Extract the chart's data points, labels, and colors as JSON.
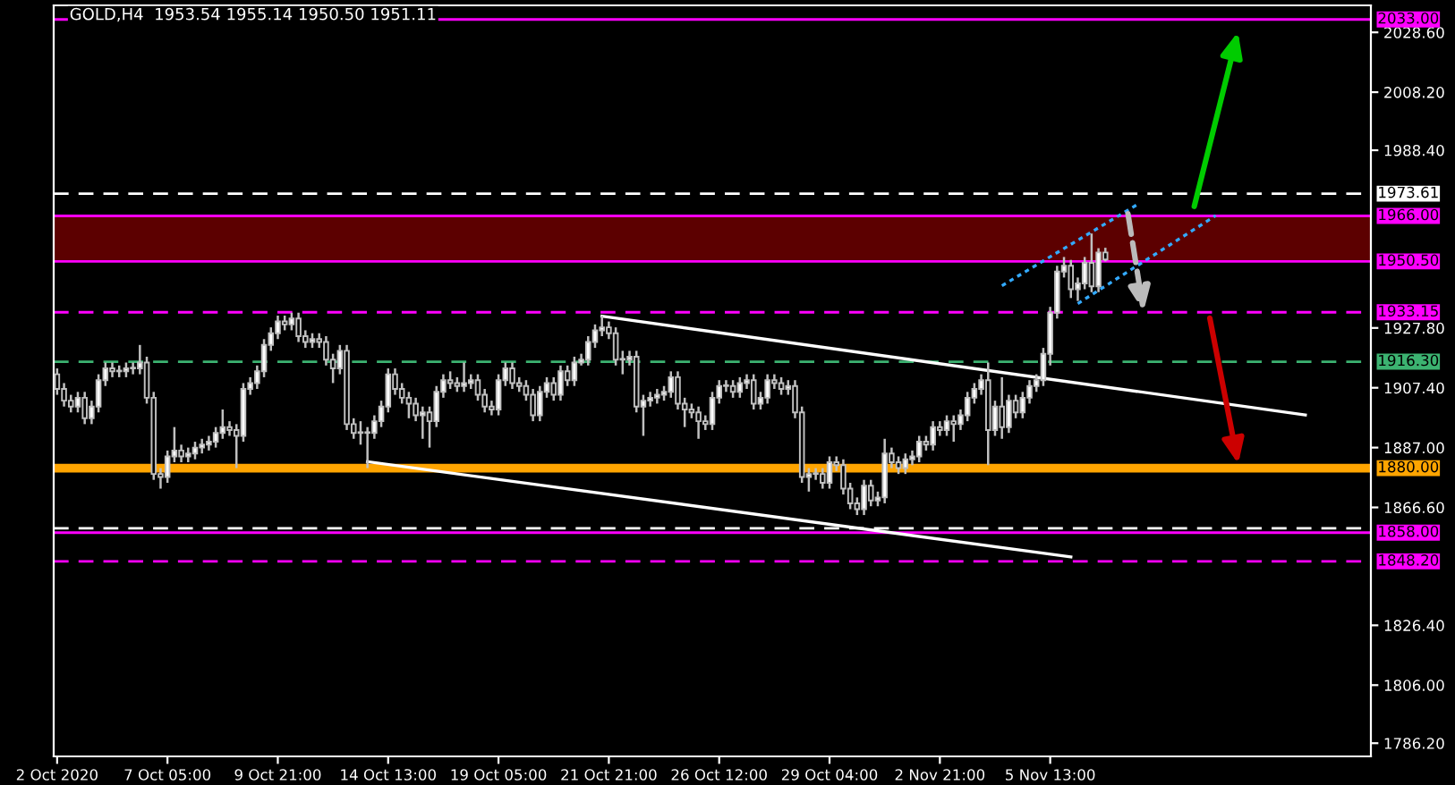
{
  "chart_data": {
    "type": "candlestick",
    "title": "GOLD,H4  1953.54 1955.14 1950.50 1951.11",
    "categories": [
      "2 Oct 2020",
      null,
      null,
      null,
      null,
      null,
      null,
      null,
      null,
      null,
      null,
      null,
      null,
      null,
      null,
      null,
      "7 Oct 05:00",
      null,
      null,
      null,
      null,
      null,
      null,
      null,
      null,
      null,
      null,
      null,
      null,
      null,
      null,
      null,
      "9 Oct 21:00",
      null,
      null,
      null,
      null,
      null,
      null,
      null,
      null,
      null,
      null,
      null,
      null,
      null,
      null,
      null,
      "14 Oct 13:00",
      null,
      null,
      null,
      null,
      null,
      null,
      null,
      null,
      null,
      null,
      null,
      null,
      null,
      null,
      null,
      "19 Oct 05:00",
      null,
      null,
      null,
      null,
      null,
      null,
      null,
      null,
      null,
      null,
      null,
      null,
      null,
      null,
      null,
      "21 Oct 21:00",
      null,
      null,
      null,
      null,
      null,
      null,
      null,
      null,
      null,
      null,
      null,
      null,
      null,
      null,
      null,
      "26 Oct 12:00",
      null,
      null,
      null,
      null,
      null,
      null,
      null,
      null,
      null,
      null,
      null,
      null,
      null,
      null,
      null,
      "29 Oct 04:00",
      null,
      null,
      null,
      null,
      null,
      null,
      null,
      null,
      null,
      null,
      null,
      null,
      null,
      null,
      null,
      "2 Nov 21:00",
      null,
      null,
      null,
      null,
      null,
      null,
      null,
      null,
      null,
      null,
      null,
      null,
      null,
      null,
      null,
      "5 Nov 13:00",
      null,
      null,
      null,
      null,
      null,
      null,
      null,
      null,
      null,
      null,
      null,
      null,
      null,
      null,
      null,
      null,
      null,
      null,
      null,
      null,
      null,
      null,
      null,
      null,
      null,
      null,
      null,
      null,
      null,
      null,
      null,
      null,
      null,
      null,
      null,
      null,
      null,
      null,
      null,
      null,
      null,
      null,
      null,
      null,
      null,
      null
    ],
    "ohlc": [
      [
        1912,
        1914,
        1905,
        1907
      ],
      [
        1907,
        1909,
        1901,
        1903
      ],
      [
        1903,
        1905,
        1899,
        1901
      ],
      [
        1901,
        1906,
        1899,
        1904
      ],
      [
        1904,
        1906,
        1895,
        1897
      ],
      [
        1897,
        1903,
        1895,
        1901
      ],
      [
        1901,
        1912,
        1899,
        1910
      ],
      [
        1910,
        1916,
        1908,
        1914
      ],
      [
        1914,
        1916,
        1911,
        1913
      ],
      [
        1913,
        1915,
        1911,
        1913
      ],
      [
        1913,
        1916,
        1911,
        1914
      ],
      [
        1914,
        1916,
        1912,
        1914
      ],
      [
        1914,
        1922,
        1912,
        1916
      ],
      [
        1916,
        1918,
        1902,
        1904
      ],
      [
        1904,
        1906,
        1876,
        1878
      ],
      [
        1878,
        1880,
        1873,
        1877
      ],
      [
        1877,
        1886,
        1875,
        1884
      ],
      [
        1884,
        1894,
        1882,
        1886
      ],
      [
        1886,
        1888,
        1882,
        1884
      ],
      [
        1884,
        1887,
        1882,
        1885
      ],
      [
        1885,
        1889,
        1883,
        1887
      ],
      [
        1887,
        1890,
        1885,
        1888
      ],
      [
        1888,
        1891,
        1886,
        1889
      ],
      [
        1889,
        1894,
        1887,
        1892
      ],
      [
        1892,
        1900,
        1890,
        1894
      ],
      [
        1894,
        1896,
        1891,
        1893
      ],
      [
        1893,
        1895,
        1880,
        1891
      ],
      [
        1891,
        1909,
        1889,
        1907
      ],
      [
        1907,
        1911,
        1905,
        1909
      ],
      [
        1909,
        1915,
        1907,
        1913
      ],
      [
        1913,
        1924,
        1911,
        1922
      ],
      [
        1922,
        1928,
        1920,
        1926
      ],
      [
        1926,
        1932,
        1924,
        1930
      ],
      [
        1930,
        1932,
        1927,
        1929
      ],
      [
        1929,
        1933,
        1927,
        1931
      ],
      [
        1931,
        1933,
        1923,
        1925
      ],
      [
        1925,
        1927,
        1921,
        1923
      ],
      [
        1923,
        1926,
        1921,
        1924
      ],
      [
        1924,
        1926,
        1921,
        1923
      ],
      [
        1923,
        1925,
        1915,
        1917
      ],
      [
        1917,
        1919,
        1909,
        1914
      ],
      [
        1914,
        1922,
        1912,
        1920
      ],
      [
        1920,
        1922,
        1893,
        1895
      ],
      [
        1895,
        1897,
        1890,
        1892
      ],
      [
        1892,
        1896,
        1888,
        1892
      ],
      [
        1892,
        1894,
        1880,
        1892
      ],
      [
        1892,
        1898,
        1890,
        1896
      ],
      [
        1896,
        1903,
        1894,
        1901
      ],
      [
        1901,
        1914,
        1899,
        1912
      ],
      [
        1912,
        1914,
        1905,
        1907
      ],
      [
        1907,
        1909,
        1902,
        1904
      ],
      [
        1904,
        1906,
        1897,
        1902
      ],
      [
        1902,
        1904,
        1896,
        1898
      ],
      [
        1898,
        1901,
        1890,
        1899
      ],
      [
        1899,
        1901,
        1887,
        1896
      ],
      [
        1896,
        1908,
        1894,
        1906
      ],
      [
        1906,
        1912,
        1904,
        1910
      ],
      [
        1910,
        1913,
        1907,
        1909
      ],
      [
        1909,
        1911,
        1906,
        1908
      ],
      [
        1908,
        1916,
        1906,
        1909
      ],
      [
        1909,
        1912,
        1907,
        1910
      ],
      [
        1910,
        1912,
        1903,
        1905
      ],
      [
        1905,
        1907,
        1899,
        1901
      ],
      [
        1901,
        1903,
        1898,
        1900
      ],
      [
        1900,
        1912,
        1898,
        1910
      ],
      [
        1910,
        1916,
        1908,
        1914
      ],
      [
        1914,
        1916,
        1907,
        1909
      ],
      [
        1909,
        1911,
        1906,
        1908
      ],
      [
        1908,
        1910,
        1903,
        1905
      ],
      [
        1905,
        1907,
        1896,
        1898
      ],
      [
        1898,
        1908,
        1896,
        1906
      ],
      [
        1906,
        1911,
        1904,
        1909
      ],
      [
        1909,
        1911,
        1903,
        1905
      ],
      [
        1905,
        1915,
        1903,
        1913
      ],
      [
        1913,
        1915,
        1908,
        1910
      ],
      [
        1910,
        1918,
        1908,
        1916
      ],
      [
        1916,
        1919,
        1915,
        1917
      ],
      [
        1917,
        1925,
        1915,
        1923
      ],
      [
        1923,
        1929,
        1921,
        1927
      ],
      [
        1927,
        1932,
        1925,
        1928
      ],
      [
        1928,
        1930,
        1924,
        1926
      ],
      [
        1926,
        1928,
        1915,
        1917
      ],
      [
        1917,
        1920,
        1912,
        1917
      ],
      [
        1917,
        1920,
        1915,
        1918
      ],
      [
        1918,
        1920,
        1899,
        1901
      ],
      [
        1901,
        1905,
        1891,
        1903
      ],
      [
        1903,
        1906,
        1901,
        1904
      ],
      [
        1904,
        1907,
        1902,
        1905
      ],
      [
        1905,
        1908,
        1903,
        1906
      ],
      [
        1906,
        1913,
        1904,
        1911
      ],
      [
        1911,
        1913,
        1900,
        1902
      ],
      [
        1902,
        1904,
        1894,
        1900
      ],
      [
        1900,
        1902,
        1897,
        1899
      ],
      [
        1899,
        1901,
        1890,
        1896
      ],
      [
        1896,
        1898,
        1893,
        1895
      ],
      [
        1895,
        1906,
        1893,
        1904
      ],
      [
        1904,
        1910,
        1902,
        1908
      ],
      [
        1908,
        1910,
        1906,
        1908
      ],
      [
        1908,
        1910,
        1904,
        1906
      ],
      [
        1906,
        1911,
        1904,
        1909
      ],
      [
        1909,
        1912,
        1907,
        1910
      ],
      [
        1910,
        1912,
        1900,
        1902
      ],
      [
        1902,
        1906,
        1900,
        1904
      ],
      [
        1904,
        1912,
        1902,
        1910
      ],
      [
        1910,
        1912,
        1907,
        1909
      ],
      [
        1909,
        1911,
        1905,
        1907
      ],
      [
        1907,
        1910,
        1905,
        1908
      ],
      [
        1908,
        1910,
        1897,
        1899
      ],
      [
        1899,
        1901,
        1875,
        1877
      ],
      [
        1877,
        1880,
        1872,
        1878
      ],
      [
        1878,
        1880,
        1876,
        1878
      ],
      [
        1878,
        1880,
        1873,
        1875
      ],
      [
        1875,
        1884,
        1873,
        1882
      ],
      [
        1882,
        1884,
        1879,
        1881
      ],
      [
        1881,
        1883,
        1871,
        1873
      ],
      [
        1873,
        1875,
        1866,
        1868
      ],
      [
        1868,
        1870,
        1864,
        1866
      ],
      [
        1866,
        1876,
        1864,
        1874
      ],
      [
        1874,
        1876,
        1867,
        1869
      ],
      [
        1869,
        1872,
        1867,
        1870
      ],
      [
        1870,
        1890,
        1868,
        1885
      ],
      [
        1885,
        1887,
        1880,
        1882
      ],
      [
        1882,
        1884,
        1878,
        1880
      ],
      [
        1880,
        1885,
        1878,
        1883
      ],
      [
        1883,
        1886,
        1881,
        1884
      ],
      [
        1884,
        1891,
        1882,
        1889
      ],
      [
        1889,
        1891,
        1886,
        1888
      ],
      [
        1888,
        1896,
        1886,
        1894
      ],
      [
        1894,
        1896,
        1891,
        1893
      ],
      [
        1893,
        1898,
        1891,
        1896
      ],
      [
        1896,
        1898,
        1889,
        1895
      ],
      [
        1895,
        1900,
        1893,
        1898
      ],
      [
        1898,
        1906,
        1896,
        1904
      ],
      [
        1904,
        1909,
        1902,
        1907
      ],
      [
        1907,
        1912,
        1905,
        1910
      ],
      [
        1910,
        1916,
        1881,
        1893
      ],
      [
        1893,
        1903,
        1891,
        1901
      ],
      [
        1901,
        1911,
        1890,
        1894
      ],
      [
        1894,
        1905,
        1892,
        1903
      ],
      [
        1903,
        1905,
        1897,
        1899
      ],
      [
        1899,
        1906,
        1897,
        1904
      ],
      [
        1904,
        1910,
        1902,
        1908
      ],
      [
        1908,
        1912,
        1906,
        1910
      ],
      [
        1910,
        1921,
        1908,
        1919
      ],
      [
        1919,
        1935,
        1915,
        1933
      ],
      [
        1933,
        1949,
        1931,
        1947
      ],
      [
        1947,
        1952,
        1945,
        1949
      ],
      [
        1949,
        1951,
        1938,
        1941
      ],
      [
        1941,
        1945,
        1937,
        1943
      ],
      [
        1943,
        1952,
        1941,
        1950
      ],
      [
        1950,
        1960,
        1940,
        1942
      ],
      [
        1942,
        1955,
        1940,
        1953.54
      ],
      [
        1953.54,
        1955.14,
        1950.5,
        1951.11
      ],
      null,
      null,
      null,
      null,
      null,
      null,
      null,
      null,
      null,
      null,
      null,
      null,
      null,
      null,
      null,
      null,
      null,
      null,
      null,
      null,
      null,
      null,
      null,
      null,
      null,
      null,
      null,
      null,
      null,
      null,
      null,
      null,
      null,
      null,
      null,
      null,
      null,
      null
    ],
    "series": [
      {
        "type": "line",
        "color": "#ffffff",
        "line_style": "solid",
        "values": [
          null,
          null,
          null,
          null,
          null,
          null,
          null,
          null,
          null,
          null,
          null,
          null,
          null,
          null,
          null,
          null,
          null,
          null,
          null,
          null,
          null,
          null,
          null,
          null,
          null,
          null,
          null,
          null,
          null,
          null,
          null,
          null,
          null,
          null,
          null,
          null,
          null,
          null,
          null,
          null,
          null,
          null,
          null,
          null,
          null,
          null,
          null,
          null,
          null,
          null,
          null,
          null,
          null,
          null,
          null,
          null,
          null,
          null,
          null,
          null,
          null,
          null,
          null,
          null,
          null,
          null,
          null,
          null,
          null,
          null,
          null,
          null,
          null,
          null,
          null,
          null,
          null,
          null,
          null,
          1931.8,
          null,
          null,
          null,
          null,
          null,
          null,
          null,
          null,
          null,
          null,
          null,
          null,
          null,
          null,
          null,
          null,
          null,
          null,
          null,
          null,
          null,
          null,
          null,
          null,
          null,
          null,
          null,
          null,
          null,
          null,
          null,
          null,
          null,
          null,
          null,
          null,
          null,
          null,
          null,
          null,
          null,
          null,
          null,
          null,
          null,
          null,
          null,
          null,
          null,
          null,
          null,
          null,
          null,
          null,
          null,
          null,
          null,
          null,
          null,
          null,
          null,
          null,
          null,
          null,
          null,
          null,
          null,
          null,
          null,
          null,
          null,
          null,
          null,
          null,
          null,
          null,
          null,
          null,
          null,
          null,
          null,
          null,
          null,
          null,
          null,
          null,
          null,
          null,
          null,
          null,
          null,
          null,
          null,
          null,
          null,
          null,
          null,
          null,
          null,
          null,
          null,
          1898.1,
          null,
          null,
          null,
          null,
          null,
          null,
          null,
          null,
          null
        ]
      },
      {
        "type": "line",
        "color": "#ffffff",
        "line_style": "solid",
        "values": [
          null,
          null,
          null,
          null,
          null,
          null,
          null,
          null,
          null,
          null,
          null,
          null,
          null,
          null,
          null,
          null,
          null,
          null,
          null,
          null,
          null,
          null,
          null,
          null,
          null,
          null,
          null,
          null,
          null,
          null,
          null,
          null,
          null,
          null,
          null,
          null,
          null,
          null,
          null,
          null,
          null,
          null,
          null,
          null,
          null,
          1882.2,
          null,
          null,
          null,
          null,
          null,
          null,
          null,
          null,
          null,
          null,
          null,
          null,
          null,
          null,
          null,
          null,
          null,
          null,
          null,
          null,
          null,
          null,
          null,
          null,
          null,
          null,
          null,
          null,
          null,
          null,
          null,
          null,
          null,
          null,
          null,
          null,
          null,
          null,
          null,
          null,
          null,
          null,
          null,
          null,
          null,
          null,
          null,
          null,
          null,
          null,
          null,
          null,
          null,
          null,
          null,
          null,
          null,
          null,
          null,
          null,
          null,
          null,
          null,
          null,
          null,
          null,
          null,
          null,
          null,
          null,
          null,
          null,
          null,
          null,
          null,
          null,
          null,
          null,
          null,
          null,
          null,
          null,
          null,
          null,
          null,
          null,
          null,
          null,
          null,
          null,
          null,
          null,
          null,
          null,
          null,
          null,
          null,
          null,
          null,
          null,
          null,
          1849.7,
          null,
          null,
          null,
          null,
          null,
          null,
          null,
          null,
          null,
          null,
          null,
          null,
          null,
          null,
          null,
          null,
          null,
          null,
          null,
          null,
          null,
          null,
          null,
          null,
          null,
          null,
          null,
          null,
          null,
          null,
          null,
          null,
          null,
          null,
          null,
          null,
          null,
          null,
          null,
          null,
          null,
          null,
          null
        ]
      },
      {
        "type": "line",
        "color": "#33aaff",
        "line_style": "dotted",
        "values": [
          null,
          null,
          null,
          null,
          null,
          null,
          null,
          null,
          null,
          null,
          null,
          null,
          null,
          null,
          null,
          null,
          null,
          null,
          null,
          null,
          null,
          null,
          null,
          null,
          null,
          null,
          null,
          null,
          null,
          null,
          null,
          null,
          null,
          null,
          null,
          null,
          null,
          null,
          null,
          null,
          null,
          null,
          null,
          null,
          null,
          null,
          null,
          null,
          null,
          null,
          null,
          null,
          null,
          null,
          null,
          null,
          null,
          null,
          null,
          null,
          null,
          null,
          null,
          null,
          null,
          null,
          null,
          null,
          null,
          null,
          null,
          null,
          null,
          null,
          null,
          null,
          null,
          null,
          null,
          null,
          null,
          null,
          null,
          null,
          null,
          null,
          null,
          null,
          null,
          null,
          null,
          null,
          null,
          null,
          null,
          null,
          null,
          null,
          null,
          null,
          null,
          null,
          null,
          null,
          null,
          null,
          null,
          null,
          null,
          null,
          null,
          null,
          null,
          null,
          null,
          null,
          null,
          null,
          null,
          null,
          null,
          null,
          null,
          null,
          null,
          null,
          null,
          null,
          null,
          null,
          null,
          null,
          null,
          null,
          null,
          null,
          null,
          1942.2,
          null,
          null,
          null,
          null,
          null,
          null,
          null,
          null,
          null,
          null,
          null,
          null,
          null,
          null,
          null,
          null,
          null,
          null,
          null,
          1970.4,
          null,
          null,
          null,
          null,
          null,
          null,
          null,
          null,
          null,
          null,
          null,
          null,
          null,
          null,
          null,
          null,
          null,
          null,
          null,
          null,
          null,
          null,
          null,
          null,
          null,
          null,
          null,
          null,
          null,
          null,
          null,
          null,
          null
        ]
      },
      {
        "type": "line",
        "color": "#33aaff",
        "line_style": "dotted",
        "values": [
          null,
          null,
          null,
          null,
          null,
          null,
          null,
          null,
          null,
          null,
          null,
          null,
          null,
          null,
          null,
          null,
          null,
          null,
          null,
          null,
          null,
          null,
          null,
          null,
          null,
          null,
          null,
          null,
          null,
          null,
          null,
          null,
          null,
          null,
          null,
          null,
          null,
          null,
          null,
          null,
          null,
          null,
          null,
          null,
          null,
          null,
          null,
          null,
          null,
          null,
          null,
          null,
          null,
          null,
          null,
          null,
          null,
          null,
          null,
          null,
          null,
          null,
          null,
          null,
          null,
          null,
          null,
          null,
          null,
          null,
          null,
          null,
          null,
          null,
          null,
          null,
          null,
          null,
          null,
          null,
          null,
          null,
          null,
          null,
          null,
          null,
          null,
          null,
          null,
          null,
          null,
          null,
          null,
          null,
          null,
          null,
          null,
          null,
          null,
          null,
          null,
          null,
          null,
          null,
          null,
          null,
          null,
          null,
          null,
          null,
          null,
          null,
          null,
          null,
          null,
          null,
          null,
          null,
          null,
          null,
          null,
          null,
          null,
          null,
          null,
          null,
          null,
          null,
          null,
          null,
          null,
          null,
          null,
          null,
          null,
          null,
          null,
          null,
          null,
          null,
          null,
          null,
          null,
          null,
          null,
          null,
          null,
          null,
          1936.1,
          null,
          null,
          null,
          null,
          null,
          null,
          null,
          null,
          null,
          null,
          null,
          null,
          null,
          null,
          null,
          null,
          null,
          null,
          null,
          1966.1,
          null,
          null,
          null,
          null,
          null,
          null,
          null,
          null,
          null,
          null,
          null,
          null,
          null,
          null,
          null,
          null,
          null,
          null,
          null,
          null,
          null,
          null
        ]
      }
    ],
    "bands": [
      {
        "axis": "y",
        "from": 1950.5,
        "to": 1966.0,
        "label": null,
        "color": "#5c0000"
      }
    ],
    "ref_lines": [
      {
        "axis": "y",
        "value": 2033.0,
        "label": "2033.00",
        "color": "#ff00ff",
        "line_style": "solid"
      },
      {
        "axis": "y",
        "value": 1973.61,
        "label": "1973.61",
        "color": "#ffffff",
        "line_style": "dashed"
      },
      {
        "axis": "y",
        "value": 1966.0,
        "label": "1966.00",
        "color": "#ff00ff",
        "line_style": "solid"
      },
      {
        "axis": "y",
        "value": 1950.5,
        "label": "1950.50",
        "color": "#ff00ff",
        "line_style": "solid"
      },
      {
        "axis": "y",
        "value": 1933.15,
        "label": "1933.15",
        "color": "#ff00ff",
        "line_style": "dashed"
      },
      {
        "axis": "y",
        "value": 1916.3,
        "label": "1916.30",
        "color": "#3cb371",
        "line_style": "dashed"
      },
      {
        "axis": "y",
        "value": 1880.0,
        "label": "1880.00",
        "color": "#ffa500",
        "line_style": "solid"
      },
      {
        "axis": "y",
        "value": 1859.5,
        "label": null,
        "color": "#ffffff",
        "line_style": "dashed"
      },
      {
        "axis": "y",
        "value": 1858.0,
        "label": "1858.00",
        "color": "#ff00ff",
        "line_style": "solid"
      },
      {
        "axis": "y",
        "value": 1848.2,
        "label": "1848.20",
        "color": "#ff00ff",
        "line_style": "dashed"
      }
    ],
    "ylim": [
      1781.7,
      2037.8
    ],
    "yticks": [
      {
        "value": 1786.2,
        "label": "1786.20"
      },
      {
        "value": 1806.0,
        "label": "1806.00"
      },
      {
        "value": 1826.4,
        "label": "1826.40"
      },
      {
        "value": 1866.6,
        "label": "1866.60"
      },
      {
        "value": 1887.0,
        "label": "1887.00"
      },
      {
        "value": 1907.4,
        "label": "1907.40"
      },
      {
        "value": 1927.8,
        "label": "1927.80"
      },
      {
        "value": 1988.4,
        "label": "1988.40"
      },
      {
        "value": 2008.2,
        "label": "2008.20"
      },
      {
        "value": 2028.6,
        "label": "2028.60"
      }
    ],
    "grid": false,
    "legend": false
  }
}
